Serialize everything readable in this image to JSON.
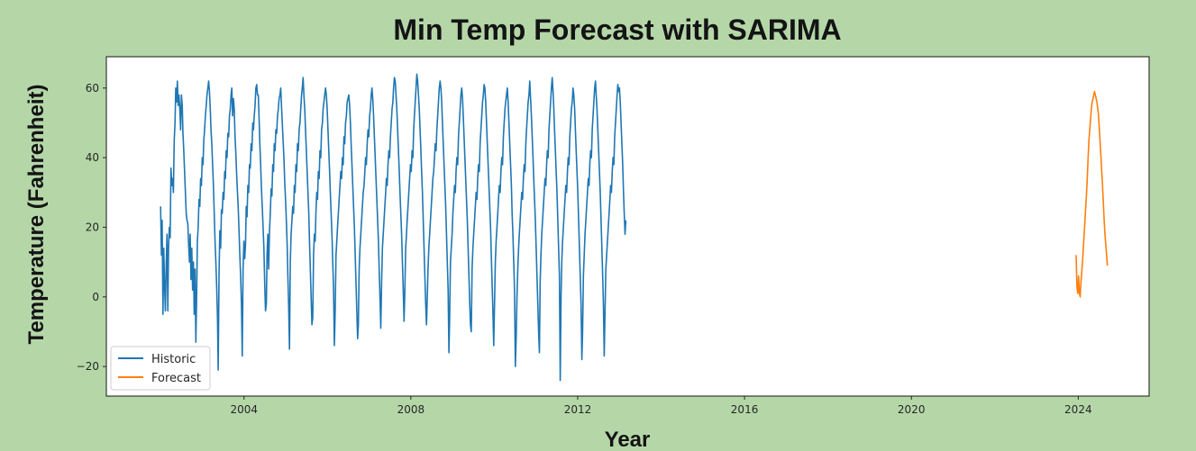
{
  "chart_data": {
    "type": "line",
    "title": "Min Temp Forecast with SARIMA",
    "xlabel": "Year",
    "ylabel": "Temperature (Fahrenheit)",
    "xlim": [
      2000.7,
      2025.7
    ],
    "ylim": [
      -28.5,
      69
    ],
    "x_ticks": [
      2004,
      2008,
      2012,
      2016,
      2020,
      2024
    ],
    "y_ticks": [
      -20,
      0,
      20,
      40,
      60
    ],
    "grid": false,
    "legend_position": "bottom-left",
    "background": "#ffffff",
    "series": [
      {
        "name": "Historic",
        "color": "#1f77b4",
        "x_start": 2002.0,
        "x_step": 0.0192,
        "values": [
          26,
          12,
          22,
          -5,
          14,
          3,
          -4,
          9,
          18,
          -4,
          14,
          20,
          17,
          37,
          32,
          34,
          30,
          45,
          50,
          60,
          56,
          62,
          55,
          58,
          54,
          48,
          58,
          55,
          47,
          42,
          36,
          30,
          24,
          22,
          21,
          15,
          10,
          18,
          5,
          14,
          2,
          10,
          -5,
          8,
          -13,
          -1,
          16,
          20,
          28,
          26,
          34,
          32,
          40,
          38,
          45,
          48,
          52,
          55,
          58,
          60,
          62,
          59,
          54,
          48,
          44,
          38,
          32,
          24,
          16,
          10,
          3,
          -6,
          -21,
          6,
          19,
          14,
          25,
          24,
          30,
          28,
          36,
          34,
          42,
          40,
          47,
          46,
          52,
          54,
          58,
          60,
          52,
          57,
          54,
          46,
          41,
          35,
          30,
          25,
          19,
          12,
          6,
          -2,
          -17,
          8,
          16,
          11,
          15,
          26,
          23,
          32,
          30,
          38,
          37,
          44,
          42,
          50,
          48,
          52,
          55,
          60,
          61,
          58,
          58,
          51,
          44,
          38,
          31,
          26,
          20,
          14,
          4,
          -4,
          -2,
          12,
          18,
          8,
          19,
          24,
          31,
          29,
          38,
          36,
          44,
          42,
          48,
          47,
          52,
          54,
          57,
          58,
          60,
          55,
          50,
          45,
          40,
          33,
          28,
          22,
          15,
          6,
          -3,
          -15,
          10,
          18,
          22,
          26,
          24,
          32,
          30,
          38,
          36,
          44,
          42,
          48,
          50,
          54,
          58,
          60,
          63,
          58,
          54,
          48,
          42,
          36,
          30,
          24,
          16,
          8,
          0,
          -8,
          -6,
          12,
          18,
          16,
          24,
          30,
          28,
          36,
          34,
          42,
          40,
          48,
          50,
          54,
          56,
          58,
          60,
          58,
          54,
          48,
          42,
          36,
          30,
          24,
          18,
          10,
          2,
          -14,
          -4,
          12,
          16,
          20,
          24,
          28,
          32,
          36,
          34,
          40,
          38,
          46,
          44,
          50,
          52,
          56,
          57,
          58,
          55,
          50,
          44,
          38,
          32,
          26,
          20,
          12,
          4,
          -4,
          -12,
          -8,
          8,
          14,
          18,
          22,
          26,
          30,
          32,
          36,
          40,
          38,
          44,
          48,
          46,
          52,
          54,
          58,
          60,
          57,
          52,
          46,
          40,
          34,
          28,
          22,
          16,
          8,
          0,
          -9,
          4,
          14,
          18,
          22,
          26,
          30,
          34,
          32,
          38,
          42,
          40,
          46,
          50,
          54,
          56,
          60,
          63,
          62,
          58,
          54,
          48,
          42,
          36,
          30,
          24,
          18,
          10,
          2,
          -7,
          2,
          14,
          18,
          22,
          26,
          30,
          34,
          38,
          36,
          42,
          40,
          48,
          52,
          56,
          60,
          64,
          62,
          58,
          54,
          48,
          42,
          36,
          30,
          22,
          14,
          6,
          -2,
          -8,
          0,
          8,
          14,
          18,
          22,
          26,
          30,
          34,
          36,
          40,
          44,
          42,
          48,
          52,
          56,
          60,
          62,
          60,
          56,
          50,
          44,
          38,
          32,
          26,
          18,
          10,
          2,
          -16,
          -6,
          10,
          14,
          18,
          24,
          28,
          32,
          30,
          36,
          40,
          38,
          46,
          50,
          54,
          58,
          60,
          57,
          52,
          46,
          40,
          34,
          28,
          22,
          14,
          6,
          -2,
          -8,
          -10,
          8,
          14,
          18,
          22,
          26,
          30,
          28,
          34,
          38,
          36,
          44,
          48,
          52,
          56,
          58,
          61,
          60,
          56,
          50,
          44,
          38,
          32,
          26,
          20,
          12,
          4,
          -4,
          -14,
          -2,
          10,
          16,
          20,
          24,
          28,
          32,
          30,
          36,
          40,
          38,
          46,
          50,
          54,
          56,
          58,
          60,
          56,
          50,
          44,
          38,
          32,
          24,
          18,
          10,
          2,
          -20,
          -12,
          0,
          8,
          14,
          18,
          22,
          26,
          30,
          28,
          34,
          38,
          36,
          44,
          48,
          52,
          56,
          58,
          62,
          57,
          52,
          46,
          40,
          34,
          28,
          22,
          14,
          6,
          -2,
          -10,
          -16,
          4,
          12,
          18,
          22,
          26,
          30,
          34,
          32,
          38,
          42,
          40,
          48,
          52,
          56,
          60,
          63,
          59,
          54,
          48,
          42,
          36,
          30,
          22,
          14,
          6,
          -24,
          0,
          10,
          16,
          20,
          24,
          28,
          32,
          30,
          36,
          40,
          38,
          46,
          50,
          54,
          56,
          60,
          58,
          54,
          48,
          42,
          36,
          30,
          22,
          14,
          6,
          -2,
          -18,
          -10,
          6,
          12,
          18,
          22,
          26,
          30,
          34,
          32,
          38,
          42,
          40,
          48,
          52,
          56,
          60,
          62,
          58,
          54,
          48,
          42,
          36,
          30,
          22,
          14,
          6,
          -2,
          -17,
          -4,
          8,
          12,
          16,
          20,
          24,
          28,
          32,
          30,
          36,
          40,
          38,
          46,
          50,
          54,
          58,
          61,
          59,
          60,
          56,
          50,
          44,
          38,
          30,
          24,
          18,
          22
        ]
      },
      {
        "name": "Forecast",
        "color": "#ff7f0e",
        "x_start": 2023.95,
        "x_step": 0.0192,
        "values": [
          12,
          3,
          1,
          6,
          1,
          0,
          4,
          7,
          10,
          14,
          18,
          22,
          26,
          30,
          35,
          40,
          45,
          48,
          51,
          54,
          56,
          57,
          58,
          59,
          58,
          57,
          56,
          54,
          52,
          48,
          44,
          40,
          36,
          32,
          27,
          22,
          18,
          15,
          12,
          9
        ]
      }
    ]
  }
}
